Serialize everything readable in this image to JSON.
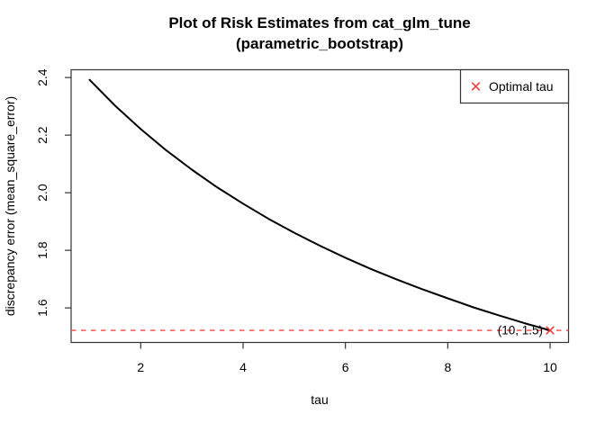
{
  "title": {
    "line1": "Plot of Risk Estimates from cat_glm_tune",
    "line2": "(parametric_bootstrap)"
  },
  "chart_data": {
    "type": "line",
    "title": "Plot of Risk Estimates from cat_glm_tune (parametric_bootstrap)",
    "xlabel": "tau",
    "ylabel": "discrepancy error (mean_square_error)",
    "xlim": [
      0.64,
      10.36
    ],
    "ylim": [
      1.48,
      2.427
    ],
    "grid": false,
    "x_ticks": [
      {
        "value": 2,
        "label": "2"
      },
      {
        "value": 4,
        "label": "4"
      },
      {
        "value": 6,
        "label": "6"
      },
      {
        "value": 8,
        "label": "8"
      },
      {
        "value": 10,
        "label": "10"
      }
    ],
    "y_ticks": [
      {
        "value": 1.6,
        "label": "1.6"
      },
      {
        "value": 1.8,
        "label": "1.8"
      },
      {
        "value": 2.0,
        "label": "2.0"
      },
      {
        "value": 2.2,
        "label": "2.2"
      },
      {
        "value": 2.4,
        "label": "2.4"
      }
    ],
    "series": [
      {
        "name": "risk estimate curve",
        "color": "#000000",
        "x": [
          1,
          1.5,
          2,
          2.5,
          3,
          3.5,
          4,
          4.5,
          5,
          5.5,
          6,
          6.5,
          7,
          7.5,
          8,
          8.5,
          9,
          9.5,
          10
        ],
        "y": [
          2.392,
          2.302,
          2.221,
          2.147,
          2.08,
          2.018,
          1.962,
          1.909,
          1.861,
          1.816,
          1.774,
          1.735,
          1.699,
          1.665,
          1.633,
          1.602,
          1.574,
          1.547,
          1.522
        ]
      }
    ],
    "hline": {
      "value": 1.522,
      "color": "#f24545",
      "style": "dashed"
    },
    "optimal_point": {
      "x": 10,
      "y": 1.522,
      "label": "(10, 1.5)",
      "marker": "x-cross",
      "color": "#e93f3f"
    },
    "legend": {
      "position": "topright",
      "entries": [
        {
          "label": "Optimal tau",
          "marker": "x-cross",
          "color": "#e93f3f"
        }
      ]
    },
    "frame_color": "#333333"
  }
}
